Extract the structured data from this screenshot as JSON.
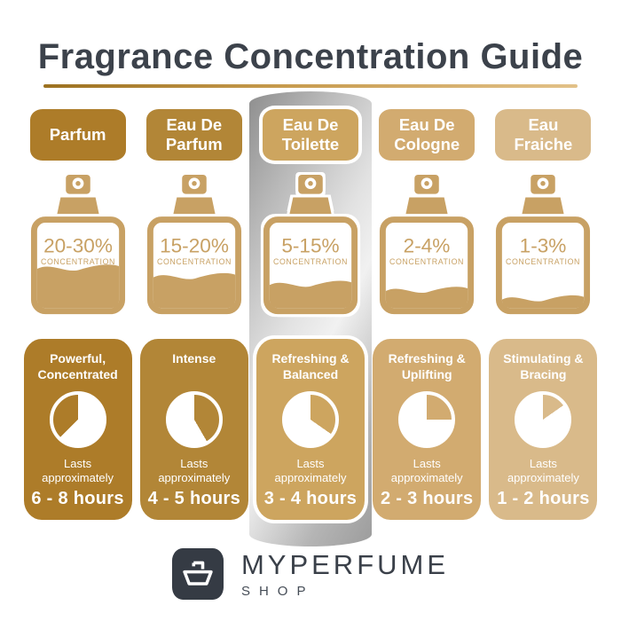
{
  "title": "Fragrance Concentration Guide",
  "bottle_color": "#c8a164",
  "highlight": {
    "column_index": 2
  },
  "columns": [
    {
      "name": "Parfum",
      "concentration": "20-30%",
      "concentration_label": "CONCENTRATION",
      "fill_level": 0.46,
      "description": "Powerful, Concentrated",
      "lasts_label": "Lasts approximately",
      "duration": "6 - 8 hours",
      "accent": "#ad7c29",
      "clock": {
        "gold_start": 225,
        "gold_end": 360
      }
    },
    {
      "name": "Eau De Parfum",
      "concentration": "15-20%",
      "concentration_label": "CONCENTRATION",
      "fill_level": 0.36,
      "description": "Intense",
      "lasts_label": "Lasts approximately",
      "duration": "4 - 5 hours",
      "accent": "#b28637",
      "clock": {
        "gold_start": 0,
        "gold_end": 150
      }
    },
    {
      "name": "Eau De Toilette",
      "concentration": "5-15%",
      "concentration_label": "CONCENTRATION",
      "fill_level": 0.27,
      "description": "Refreshing & Balanced",
      "lasts_label": "Lasts approximately",
      "duration": "3 - 4 hours",
      "accent": "#cda55f",
      "clock": {
        "gold_start": 0,
        "gold_end": 125
      }
    },
    {
      "name": "Eau De Cologne",
      "concentration": "2-4%",
      "concentration_label": "CONCENTRATION",
      "fill_level": 0.2,
      "description": "Refreshing & Uplifting",
      "lasts_label": "Lasts approximately",
      "duration": "2 - 3 hours",
      "accent": "#d2ab70",
      "clock": {
        "gold_start": 0,
        "gold_end": 90
      }
    },
    {
      "name": "Eau Fraiche",
      "concentration": "1-3%",
      "concentration_label": "CONCENTRATION",
      "fill_level": 0.1,
      "description": "Stimulating & Bracing",
      "lasts_label": "Lasts approximately",
      "duration": "1 - 2 hours",
      "accent": "#d9ba8a",
      "clock": {
        "gold_start": 0,
        "gold_end": 55
      }
    }
  ],
  "footer": {
    "brand": "MYPERFUME",
    "sub": "SHOP"
  }
}
